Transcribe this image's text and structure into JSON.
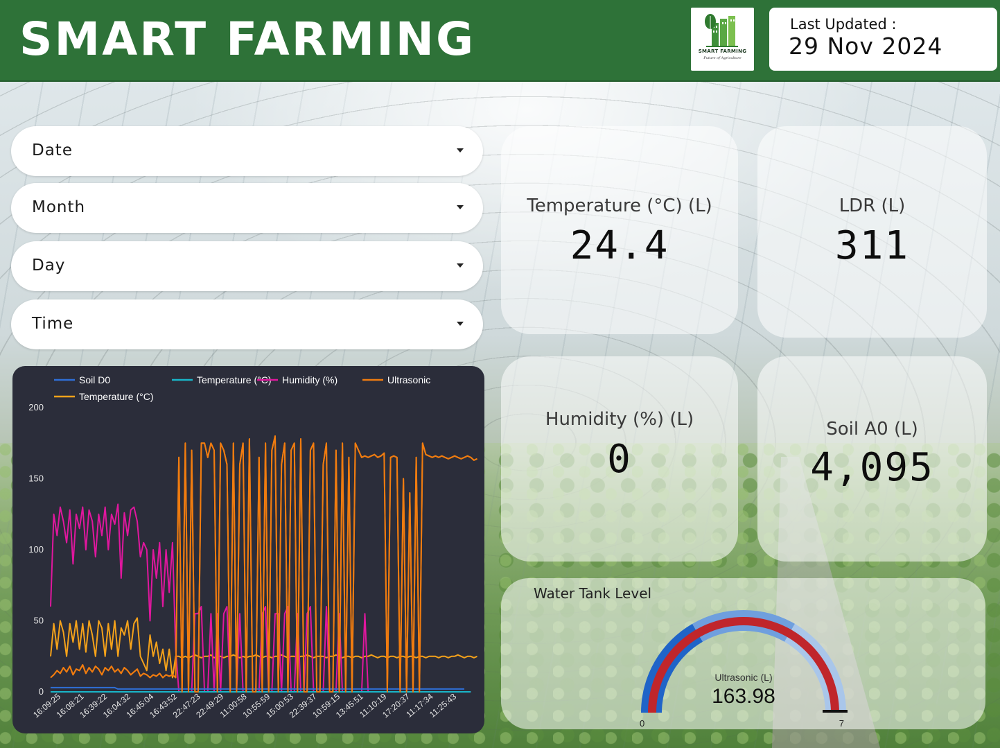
{
  "header": {
    "title": "SMART FARMING",
    "logo_text": "SMART FARMING",
    "logo_tagline": "Future of Agriculture",
    "last_updated_label": "Last Updated :",
    "last_updated_value": "29 Nov 2024",
    "brand_color": "#2e7238"
  },
  "filters": [
    {
      "label": "Date"
    },
    {
      "label": "Month"
    },
    {
      "label": "Day"
    },
    {
      "label": "Time"
    }
  ],
  "scorecards": [
    {
      "label": "Temperature (°C) (L)",
      "value": "24.4"
    },
    {
      "label": "LDR (L)",
      "value": "311"
    },
    {
      "label": "Humidity (%) (L)",
      "value": "0"
    },
    {
      "label": "Soil A0 (L)",
      "value": "4,095"
    }
  ],
  "gauge": {
    "title": "Water Tank Level",
    "metric_label": "Ultrasonic (L)",
    "value": 163.98,
    "value_text": "163.98",
    "min_text": "0",
    "max_text": "7",
    "fraction": 1.0,
    "colors": {
      "band_outer": "#1f64c8",
      "band_light": "#a9c6ea",
      "band_mid": "#6f9fde",
      "value_arc": "#c0262b"
    }
  },
  "chart_data": {
    "type": "line",
    "title": "",
    "xlabel": "",
    "ylabel": "",
    "ylim": [
      0,
      200
    ],
    "yticks": [
      0,
      50,
      100,
      150,
      200
    ],
    "legend_position": "top",
    "grid": false,
    "x_tick_labels": [
      "16:09:25",
      "16:08:21",
      "16:39:22",
      "16:04:32",
      "16:45:04",
      "16:43:52",
      "22:47:23",
      "22:49:29",
      "11:00:58",
      "10:55:59",
      "15:00:53",
      "22:39:37",
      "10:59:15",
      "13:45:51",
      "11:10:19",
      "17:20:37",
      "11:17:34",
      "11:25:43"
    ],
    "series": [
      {
        "name": "Soil D0",
        "color": "#2f6fd6",
        "values": [
          3,
          3,
          3,
          3,
          3,
          3,
          3,
          3,
          3,
          3,
          3,
          3,
          3,
          3,
          3,
          3,
          3,
          3,
          3,
          3,
          3,
          2,
          2,
          2,
          2,
          2,
          2,
          2,
          2,
          2,
          2,
          2,
          2,
          2,
          2,
          2,
          2,
          2,
          2,
          2,
          2,
          2,
          2,
          2,
          2,
          2,
          2,
          2,
          2,
          2,
          2,
          2,
          2,
          2,
          2,
          2,
          2,
          2,
          2,
          2,
          2,
          2,
          2,
          2,
          2,
          2,
          2,
          2,
          2,
          2,
          2,
          2,
          2,
          2,
          2,
          2,
          2,
          2,
          2,
          2,
          2,
          2,
          2,
          2,
          2,
          2,
          2,
          2,
          2,
          2,
          2,
          2,
          2,
          2,
          2,
          2,
          2,
          2,
          2,
          2,
          2,
          2,
          2,
          2,
          2,
          2,
          2,
          2,
          2,
          2,
          2,
          2,
          2,
          2,
          2,
          2,
          2,
          2,
          2,
          2,
          2,
          2,
          2,
          2,
          2,
          2,
          2,
          2,
          2,
          2
        ]
      },
      {
        "name": "Temperature (°C)",
        "color": "#19b6c9",
        "values": [
          0,
          0,
          0,
          0,
          0,
          0,
          0,
          0,
          0,
          0,
          0,
          0,
          0,
          0,
          0,
          0,
          0,
          0,
          0,
          0,
          0,
          0,
          0,
          0,
          0,
          0,
          0,
          0,
          0,
          0,
          0,
          0,
          0,
          0,
          0,
          0,
          0,
          0,
          0,
          0,
          0,
          0,
          0,
          0,
          0,
          0,
          0,
          0,
          0,
          0,
          0,
          0,
          0,
          0,
          0,
          0,
          0,
          0,
          0,
          0,
          0,
          0,
          0,
          0,
          0,
          0,
          0,
          0,
          0,
          0,
          0,
          0,
          0,
          0,
          0,
          0,
          0,
          0,
          0,
          0,
          0,
          0,
          0,
          0,
          0,
          0,
          0,
          0,
          0,
          0,
          0,
          0,
          0,
          0,
          0,
          0,
          0,
          0,
          0,
          0,
          0,
          0,
          0,
          0,
          0,
          0,
          0,
          0,
          0,
          0,
          0,
          0,
          0,
          0,
          0,
          0,
          0,
          0,
          0,
          0,
          0,
          0,
          0,
          0,
          0,
          0,
          0,
          0,
          0,
          0,
          0,
          0
        ]
      },
      {
        "name": "Humidity (%)",
        "color": "#e0179e",
        "values": [
          60,
          125,
          110,
          130,
          120,
          105,
          128,
          90,
          125,
          115,
          130,
          100,
          128,
          120,
          95,
          125,
          110,
          130,
          100,
          125,
          118,
          132,
          80,
          126,
          110,
          128,
          130,
          120,
          95,
          105,
          100,
          50,
          100,
          80,
          105,
          60,
          100,
          70,
          105,
          30,
          0,
          0,
          0,
          0,
          0,
          55,
          55,
          60,
          0,
          0,
          55,
          0,
          55,
          0,
          55,
          60,
          0,
          0,
          0,
          55,
          0,
          0,
          0,
          0,
          0,
          0,
          55,
          60,
          0,
          0,
          55,
          55,
          0,
          55,
          60,
          0,
          0,
          55,
          0,
          0,
          55,
          60,
          0,
          0,
          0,
          0,
          60,
          0,
          0,
          0,
          55,
          0,
          0,
          0,
          0,
          0,
          0,
          0,
          55,
          0,
          0,
          0,
          0,
          0,
          0,
          0,
          0,
          0,
          0,
          0,
          0,
          0,
          0,
          0,
          0,
          0,
          0,
          0,
          0,
          0,
          0,
          0,
          0,
          0,
          0,
          0,
          0,
          0,
          0,
          0,
          0,
          0
        ]
      },
      {
        "name": "Ultrasonic",
        "color": "#f07c10",
        "values": [
          10,
          12,
          15,
          13,
          17,
          14,
          18,
          12,
          16,
          15,
          19,
          13,
          17,
          14,
          18,
          16,
          12,
          17,
          15,
          18,
          14,
          16,
          13,
          17,
          15,
          12,
          14,
          16,
          11,
          13,
          12,
          10,
          12,
          11,
          13,
          10,
          12,
          11,
          12,
          10,
          165,
          0,
          175,
          0,
          170,
          0,
          0,
          175,
          175,
          165,
          175,
          170,
          0,
          175,
          170,
          160,
          0,
          175,
          0,
          160,
          175,
          0,
          178,
          0,
          0,
          165,
          0,
          175,
          0,
          170,
          180,
          0,
          160,
          175,
          0,
          170,
          175,
          0,
          178,
          0,
          0,
          170,
          175,
          0,
          0,
          160,
          175,
          0,
          0,
          170,
          0,
          175,
          0,
          165,
          0,
          175,
          170,
          165,
          166,
          165,
          166,
          167,
          165,
          166,
          168,
          0,
          165,
          166,
          165,
          0,
          150,
          0,
          140,
          0,
          165,
          0,
          175,
          167,
          166,
          165,
          166,
          165,
          166,
          165,
          164,
          165,
          166,
          165,
          164,
          165,
          166,
          165,
          163,
          164
        ]
      },
      {
        "name": "Temperature (°C)",
        "color": "#f5a21a",
        "values": [
          25,
          48,
          30,
          50,
          42,
          25,
          48,
          35,
          50,
          30,
          48,
          28,
          50,
          40,
          25,
          50,
          45,
          25,
          48,
          30,
          50,
          25,
          45,
          40,
          50,
          30,
          48,
          52,
          25,
          20,
          15,
          40,
          25,
          35,
          20,
          30,
          15,
          30,
          10,
          25,
          25,
          24,
          25,
          24,
          25,
          26,
          25,
          24,
          25,
          25,
          26,
          24,
          25,
          25,
          24,
          25,
          25,
          26,
          25,
          24,
          25,
          24,
          25,
          25,
          26,
          25,
          24,
          25,
          25,
          24,
          25,
          25,
          26,
          25,
          24,
          25,
          25,
          24,
          25,
          25,
          26,
          25,
          24,
          25,
          25,
          25,
          24,
          25,
          25,
          26,
          25,
          24,
          25,
          25,
          24,
          25,
          25,
          24,
          25,
          25,
          26,
          25,
          24,
          25,
          25,
          24,
          25,
          25,
          24,
          25,
          25,
          24,
          25,
          25,
          24,
          25,
          25,
          24,
          25,
          25,
          25,
          24,
          25,
          25,
          24,
          25,
          25,
          26,
          25,
          24,
          25,
          25,
          24,
          25
        ]
      }
    ]
  }
}
